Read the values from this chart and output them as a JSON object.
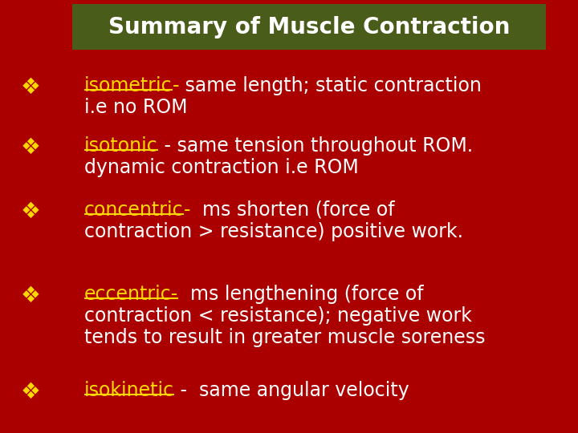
{
  "bg_color": "#aa0000",
  "title_bg_color": "#4a5c1a",
  "title_text": "Summary of Muscle Contraction",
  "title_color": "#ffffff",
  "title_fontsize": 20,
  "bullet_color": "#FFD700",
  "text_color": "#ffffff",
  "yellow_color": "#FFD700",
  "bullet_symbol": "❖",
  "font_size": 17,
  "items": [
    {
      "keyword": "isometric",
      "kw_suffix": "-",
      "rest": " same length; static contraction",
      "extra_lines": [
        "i.e no ROM"
      ]
    },
    {
      "keyword": "isotonic",
      "kw_suffix": "",
      "rest": " - same tension throughout ROM.",
      "extra_lines": [
        "dynamic contraction i.e ROM"
      ]
    },
    {
      "keyword": "concentric",
      "kw_suffix": "-",
      "rest": "  ms shorten (force of",
      "extra_lines": [
        "contraction > resistance) positive work."
      ]
    },
    {
      "keyword": "eccentric-",
      "kw_suffix": "",
      "rest": "  ms lengthening (force of",
      "extra_lines": [
        "contraction < resistance); negative work",
        "tends to result in greater muscle soreness"
      ]
    },
    {
      "keyword": "isokinetic",
      "kw_suffix": "",
      "rest": " -  same angular velocity",
      "extra_lines": []
    }
  ]
}
